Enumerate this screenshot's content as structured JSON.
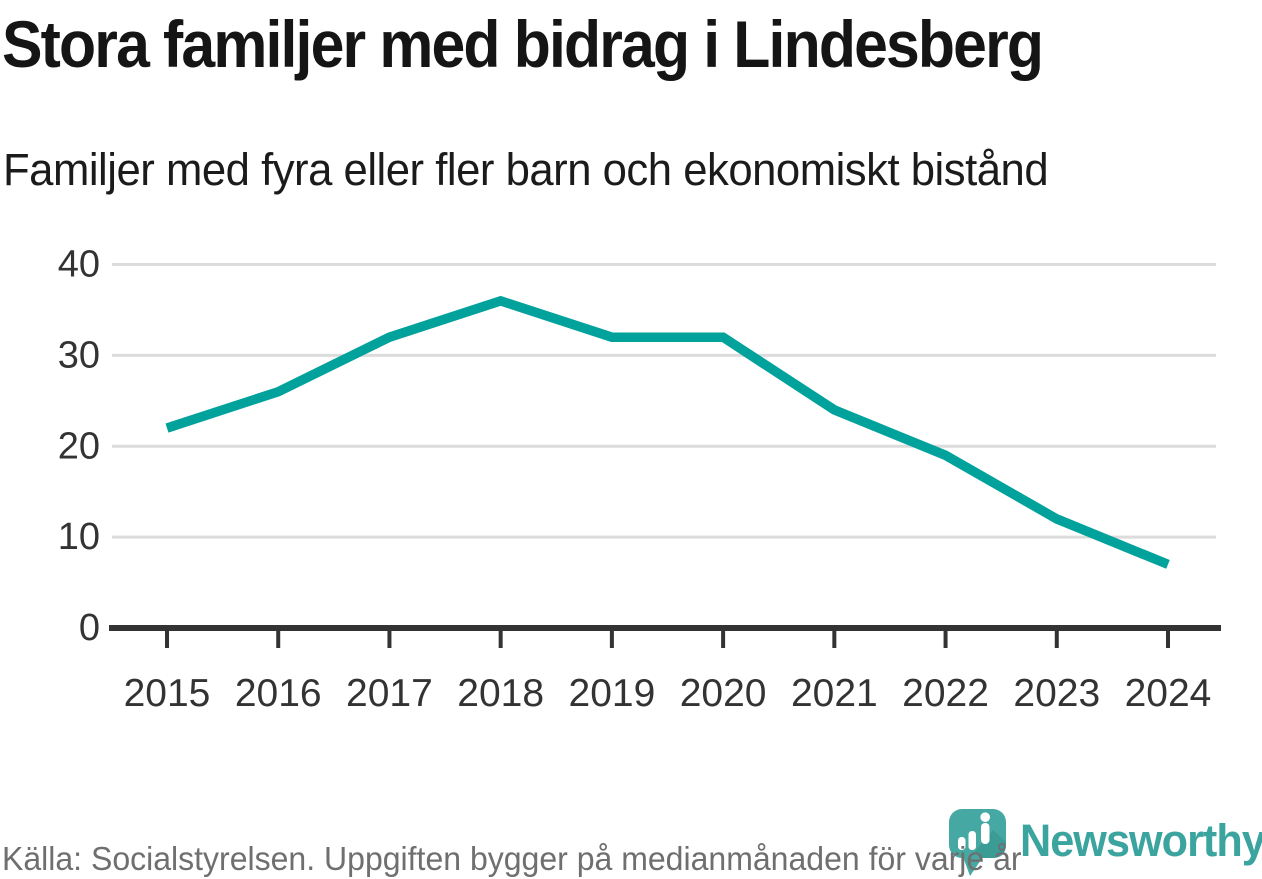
{
  "header": {
    "title": "Stora familjer med bidrag i Lindesberg",
    "subtitle": "Familjer med fyra eller fler barn och ekonomiskt bistånd"
  },
  "chart_data": {
    "type": "line",
    "x": [
      2015,
      2016,
      2017,
      2018,
      2019,
      2020,
      2021,
      2022,
      2023,
      2024
    ],
    "series": [
      {
        "name": "Familjer med fyra eller fler barn och ekonomiskt bistånd",
        "values": [
          22,
          26,
          32,
          36,
          32,
          32,
          24,
          19,
          12,
          7
        ]
      }
    ],
    "title": "Stora familjer med bidrag i Lindesberg",
    "subtitle": "Familjer med fyra eller fler barn och ekonomiskt bistånd",
    "xlabel": "",
    "ylabel": "",
    "ylim": [
      0,
      40
    ],
    "yticks": [
      0,
      10,
      20,
      30,
      40
    ],
    "grid": true,
    "legend_position": "none"
  },
  "footer": {
    "source": "Källa: Socialstyrelsen. Uppgiften bygger på medianmånaden för varje år",
    "brand_name": "Newsworthy",
    "brand_icon": "newsworthy-pin-barchart-icon"
  },
  "colors": {
    "line": "#00a29b",
    "grid": "#dcdcdc",
    "axis": "#333333",
    "tick_label": "#333333",
    "title": "#151515",
    "subtitle": "#1b1b1b",
    "footer_text": "#6f6f6f",
    "brand_teal": "#3ba49f",
    "brand_icon_fill": "#46a8a2",
    "brand_icon_shadow": "#338f8b"
  }
}
